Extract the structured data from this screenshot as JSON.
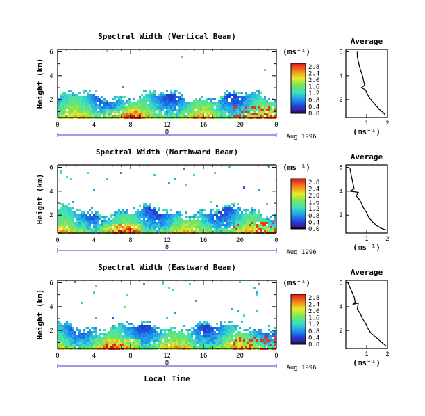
{
  "chart_data": [
    {
      "type": "heatmap",
      "title": "Spectral Width (Vertical Beam)",
      "ylabel": "Height (km)",
      "x_ticks": [
        "0",
        "4",
        "8",
        "12",
        "16",
        "20",
        "0"
      ],
      "xlim": [
        0,
        24
      ],
      "y_ticks": [
        "2",
        "4",
        "6"
      ],
      "ylim": [
        0.5,
        6.2
      ],
      "date_label": "8",
      "month_year": "Aug 1996",
      "colorbar": {
        "unit": "(ms⁻¹)",
        "ticks": [
          "0.0",
          "0.4",
          "0.8",
          "1.2",
          "1.6",
          "2.0",
          "2.4",
          "2.8"
        ],
        "range": [
          0,
          3.0
        ]
      },
      "profile": {
        "title": "Average",
        "xlabel": "(ms⁻¹)",
        "x_ticks": [
          "1",
          "2"
        ],
        "xlim": [
          0,
          2
        ],
        "y_ticks": [
          "2",
          "4",
          "6"
        ],
        "ylim": [
          0.5,
          6.2
        ],
        "points": [
          [
            0.55,
            6.0
          ],
          [
            0.55,
            5.6
          ],
          [
            0.6,
            5.2
          ],
          [
            0.65,
            4.8
          ],
          [
            0.72,
            4.4
          ],
          [
            0.8,
            4.0
          ],
          [
            0.85,
            3.6
          ],
          [
            0.9,
            3.2
          ],
          [
            0.75,
            3.0
          ],
          [
            0.95,
            2.8
          ],
          [
            1.05,
            2.4
          ],
          [
            1.15,
            2.1
          ],
          [
            1.3,
            1.8
          ],
          [
            1.45,
            1.5
          ],
          [
            1.6,
            1.2
          ],
          [
            1.8,
            0.9
          ],
          [
            1.9,
            0.7
          ]
        ]
      }
    },
    {
      "type": "heatmap",
      "title": "Spectral Width (Northward Beam)",
      "ylabel": "Height (km)",
      "x_ticks": [
        "0",
        "4",
        "8",
        "12",
        "16",
        "20",
        "0"
      ],
      "xlim": [
        0,
        24
      ],
      "y_ticks": [
        "2",
        "4",
        "6"
      ],
      "ylim": [
        0.5,
        6.2
      ],
      "date_label": "8",
      "month_year": "Aug 1996",
      "colorbar": {
        "unit": "(ms⁻¹)",
        "ticks": [
          "0.0",
          "0.4",
          "0.8",
          "1.2",
          "1.6",
          "2.0",
          "2.4",
          "2.8"
        ],
        "range": [
          0,
          3.0
        ]
      },
      "profile": {
        "title": "Average",
        "xlabel": "(ms⁻¹)",
        "x_ticks": [
          "1",
          "2"
        ],
        "xlim": [
          0,
          2
        ],
        "y_ticks": [
          "2",
          "4",
          "6"
        ],
        "ylim": [
          0.5,
          6.2
        ],
        "points": [
          [
            0.2,
            5.9
          ],
          [
            0.25,
            5.4
          ],
          [
            0.3,
            5.0
          ],
          [
            0.35,
            4.6
          ],
          [
            0.4,
            4.2
          ],
          [
            0.2,
            4.0
          ],
          [
            0.6,
            3.9
          ],
          [
            0.5,
            3.6
          ],
          [
            0.65,
            3.3
          ],
          [
            0.75,
            3.0
          ],
          [
            0.85,
            2.6
          ],
          [
            1.0,
            2.2
          ],
          [
            1.1,
            1.8
          ],
          [
            1.3,
            1.4
          ],
          [
            1.5,
            1.1
          ],
          [
            1.7,
            0.9
          ],
          [
            1.95,
            0.75
          ]
        ]
      }
    },
    {
      "type": "heatmap",
      "title": "Spectral Width (Eastward Beam)",
      "ylabel": "Height (km)",
      "xlabel": "Local Time",
      "x_ticks": [
        "0",
        "4",
        "8",
        "12",
        "16",
        "20",
        "0"
      ],
      "xlim": [
        0,
        24
      ],
      "y_ticks": [
        "2",
        "4",
        "6"
      ],
      "ylim": [
        0.5,
        6.2
      ],
      "date_label": "8",
      "month_year": "Aug 1996",
      "colorbar": {
        "unit": "(ms⁻¹)",
        "ticks": [
          "0.0",
          "0.4",
          "0.8",
          "1.2",
          "1.6",
          "2.0",
          "2.4",
          "2.8"
        ],
        "range": [
          0,
          3.0
        ]
      },
      "profile": {
        "title": "Average",
        "xlabel": "(ms⁻¹)",
        "x_ticks": [
          "1",
          "2"
        ],
        "xlim": [
          0,
          2
        ],
        "y_ticks": [
          "2",
          "4",
          "6"
        ],
        "ylim": [
          0.5,
          6.2
        ],
        "points": [
          [
            0.1,
            6.0
          ],
          [
            0.2,
            5.6
          ],
          [
            0.3,
            5.2
          ],
          [
            0.4,
            4.8
          ],
          [
            0.45,
            4.4
          ],
          [
            0.35,
            4.2
          ],
          [
            0.6,
            4.3
          ],
          [
            0.55,
            3.8
          ],
          [
            0.7,
            3.4
          ],
          [
            0.8,
            3.0
          ],
          [
            0.95,
            2.6
          ],
          [
            1.05,
            2.2
          ],
          [
            1.2,
            1.8
          ],
          [
            1.4,
            1.5
          ],
          [
            1.6,
            1.2
          ],
          [
            1.8,
            0.9
          ],
          [
            1.95,
            0.7
          ]
        ]
      }
    }
  ]
}
